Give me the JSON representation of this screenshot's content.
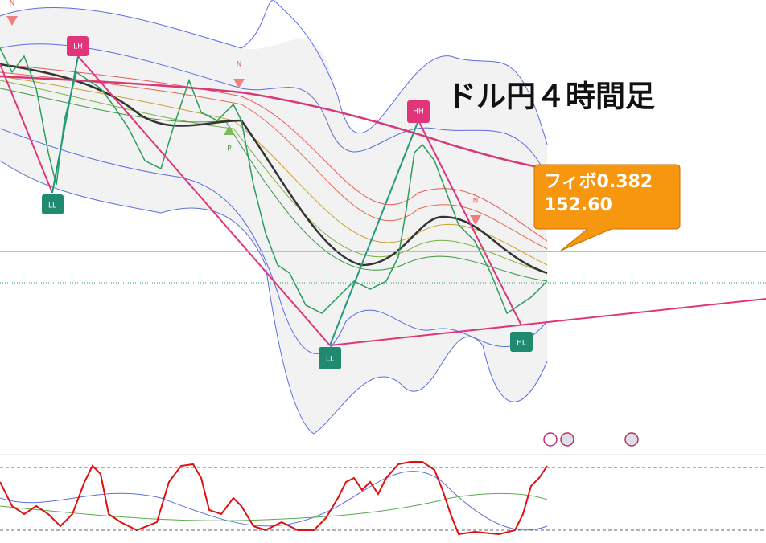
{
  "title": "ドル円４時間足",
  "annotation": {
    "label": "フィボ0.382",
    "price": "152.60"
  },
  "pivots": [
    {
      "label": "LL",
      "kind": "low"
    },
    {
      "label": "LH",
      "kind": "high"
    },
    {
      "label": "LL",
      "kind": "low"
    },
    {
      "label": "HH",
      "kind": "high"
    },
    {
      "label": "HL",
      "kind": "low"
    }
  ],
  "signals": [
    "N",
    "N",
    "N",
    "P"
  ]
}
